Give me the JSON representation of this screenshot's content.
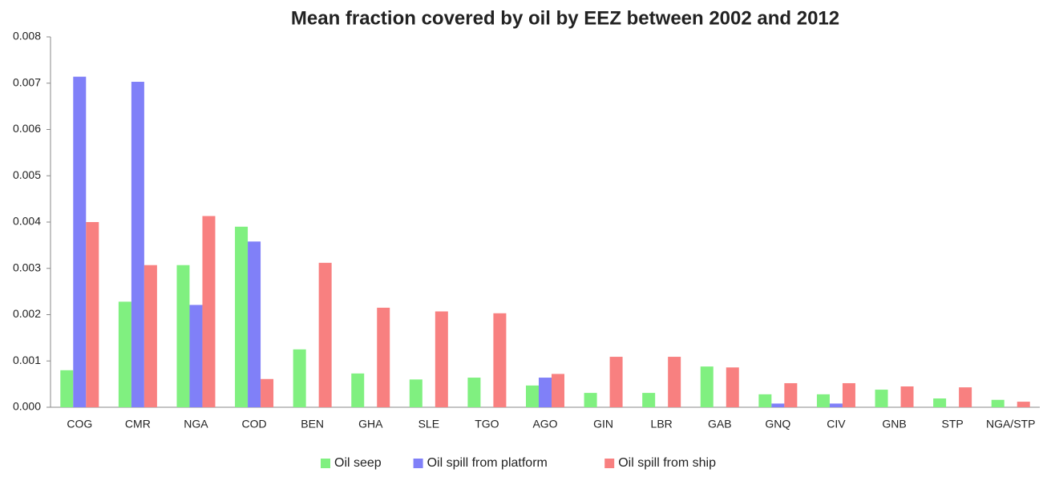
{
  "chart_data": {
    "type": "bar",
    "title": "Mean fraction covered by oil by EEZ between 2002 and 2012",
    "categories": [
      "COG",
      "CMR",
      "NGA",
      "COD",
      "BEN",
      "GHA",
      "SLE",
      "TGO",
      "AGO",
      "GIN",
      "LBR",
      "GAB",
      "GNQ",
      "CIV",
      "GNB",
      "STP",
      "NGA/STP"
    ],
    "series": [
      {
        "name": "Oil seep",
        "color": "#80f080",
        "values": [
          0.0008,
          0.00228,
          0.00307,
          0.0039,
          0.00125,
          0.00073,
          0.0006,
          0.00064,
          0.00047,
          0.00031,
          0.00031,
          0.00088,
          0.00028,
          0.00028,
          0.00038,
          0.00019,
          0.00016
        ]
      },
      {
        "name": "Oil spill from platform",
        "color": "#8080f8",
        "values": [
          0.00714,
          0.00703,
          0.00221,
          0.00358,
          0,
          0,
          0,
          0,
          0.00064,
          0,
          0,
          0,
          8e-05,
          8e-05,
          0,
          0,
          0
        ]
      },
      {
        "name": "Oil spill from ship",
        "color": "#f88080",
        "values": [
          0.004,
          0.00307,
          0.00413,
          0.00061,
          0.00312,
          0.00215,
          0.00207,
          0.00203,
          0.00072,
          0.00109,
          0.00109,
          0.00086,
          0.00052,
          0.00052,
          0.00045,
          0.00043,
          0.00012
        ]
      }
    ],
    "ylim": [
      0,
      0.008
    ],
    "yticks": [
      {
        "value": 0,
        "label": "0.000"
      },
      {
        "value": 0.001,
        "label": "0.001"
      },
      {
        "value": 0.002,
        "label": "0.002"
      },
      {
        "value": 0.003,
        "label": "0.003"
      },
      {
        "value": 0.004,
        "label": "0.004"
      },
      {
        "value": 0.005,
        "label": "0.005"
      },
      {
        "value": 0.006,
        "label": "0.006"
      },
      {
        "value": 0.007,
        "label": "0.007"
      },
      {
        "value": 0.008,
        "label": "0.008"
      }
    ],
    "grid": false,
    "legend": "bottom"
  }
}
